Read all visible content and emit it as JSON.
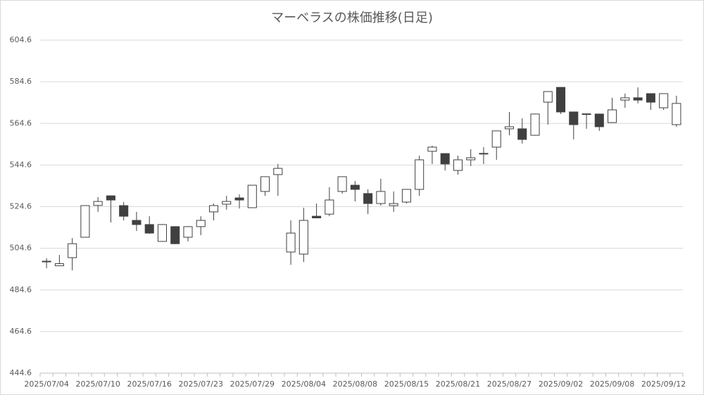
{
  "chart_data": {
    "type": "candlestick",
    "title": "マーベラスの株価推移(日足)",
    "categories": [
      "2025/07/04",
      null,
      null,
      null,
      "2025/07/10",
      null,
      null,
      null,
      "2025/07/16",
      null,
      null,
      null,
      "2025/07/23",
      null,
      null,
      null,
      "2025/07/29",
      null,
      null,
      null,
      "2025/08/04",
      null,
      null,
      null,
      "2025/08/08",
      null,
      null,
      null,
      "2025/08/15",
      null,
      null,
      null,
      "2025/08/21",
      null,
      null,
      null,
      "2025/08/27",
      null,
      null,
      null,
      "2025/09/02",
      null,
      null,
      null,
      "2025/09/08",
      null,
      null,
      null,
      "2025/09/12",
      null
    ],
    "open": [
      498.2,
      496.2,
      500.1,
      509.9,
      525.2,
      529.8,
      525.1,
      518.0,
      516.0,
      507.9,
      515.0,
      509.9,
      515.0,
      522.1,
      525.8,
      528.8,
      524.1,
      531.9,
      540.0,
      502.8,
      501.8,
      520.0,
      521.0,
      531.9,
      534.9,
      530.9,
      526.1,
      525.1,
      526.8,
      532.9,
      551.2,
      550.1,
      542.0,
      547.1,
      550.0,
      553.2,
      562.0,
      562.0,
      558.9,
      574.8,
      581.9,
      570.1,
      569.0,
      569.1,
      565.0,
      575.8,
      576.9,
      578.9,
      572.1,
      564.0
    ],
    "high": [
      499.8,
      501.4,
      509.5,
      525.1,
      529.2,
      529.9,
      526.8,
      522.1,
      520.0,
      516.2,
      515.2,
      515.2,
      520.0,
      526.1,
      529.8,
      530.5,
      535.0,
      539.1,
      545.1,
      518.0,
      524.1,
      526.1,
      533.9,
      539.0,
      536.9,
      532.9,
      538.0,
      531.9,
      533.0,
      549.1,
      553.9,
      550.3,
      549.1,
      552.2,
      553.2,
      561.0,
      570.1,
      567.0,
      569.3,
      580.1,
      582.1,
      570.3,
      569.4,
      569.3,
      576.9,
      578.9,
      581.9,
      579.0,
      579.0,
      577.9
    ],
    "low": [
      495.0,
      496.0,
      494.0,
      509.9,
      522.1,
      517.0,
      518.0,
      512.9,
      511.6,
      507.7,
      506.6,
      507.9,
      510.9,
      518.0,
      523.1,
      523.7,
      524.0,
      529.8,
      529.8,
      496.7,
      498.0,
      519.0,
      520.0,
      530.9,
      527.1,
      521.0,
      525.1,
      522.1,
      526.1,
      529.8,
      545.1,
      542.0,
      540.0,
      544.1,
      545.1,
      547.1,
      558.9,
      554.9,
      558.7,
      564.0,
      569.1,
      556.9,
      562.0,
      561.0,
      564.8,
      572.1,
      574.2,
      571.1,
      571.1,
      563.0
    ],
    "close": [
      498.4,
      497.2,
      506.8,
      525.1,
      527.1,
      527.8,
      520.0,
      516.0,
      511.9,
      516.0,
      506.8,
      515.0,
      518.0,
      525.1,
      527.1,
      527.8,
      534.9,
      539.0,
      543.0,
      511.9,
      518.0,
      519.2,
      527.8,
      539.0,
      532.9,
      526.1,
      531.9,
      526.1,
      532.9,
      547.1,
      553.2,
      545.1,
      547.1,
      548.1,
      550.2,
      561.0,
      563.0,
      556.9,
      569.1,
      579.9,
      570.1,
      564.0,
      569.2,
      563.0,
      571.1,
      576.9,
      575.8,
      574.8,
      578.9,
      574.2
    ],
    "up_color": "#ffffff",
    "down_color": "#404040",
    "edge_color": "#404040",
    "ylim": [
      444.6,
      604.6
    ],
    "yticks": [
      444.6,
      464.6,
      484.6,
      504.6,
      524.6,
      544.6,
      564.6,
      584.6,
      604.6
    ],
    "grid": true
  }
}
